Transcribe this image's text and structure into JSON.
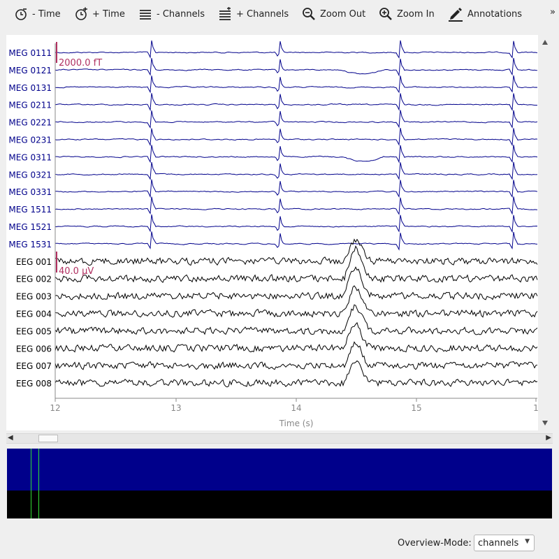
{
  "toolbar": {
    "buttons": [
      {
        "label": "- Time",
        "icon": "clock-minus-icon"
      },
      {
        "label": "+ Time",
        "icon": "clock-plus-icon"
      },
      {
        "label": "- Channels",
        "icon": "channels-minus-icon"
      },
      {
        "label": "+ Channels",
        "icon": "channels-plus-icon"
      },
      {
        "label": "Zoom Out",
        "icon": "zoom-out-icon"
      },
      {
        "label": "Zoom In",
        "icon": "zoom-in-icon"
      },
      {
        "label": "Annotations",
        "icon": "pen-icon"
      }
    ],
    "overflow": "»"
  },
  "plot": {
    "channels": [
      {
        "name": "MEG 0111",
        "type": "meg"
      },
      {
        "name": "MEG 0121",
        "type": "meg"
      },
      {
        "name": "MEG 0131",
        "type": "meg"
      },
      {
        "name": "MEG 0211",
        "type": "meg"
      },
      {
        "name": "MEG 0221",
        "type": "meg"
      },
      {
        "name": "MEG 0231",
        "type": "meg"
      },
      {
        "name": "MEG 0311",
        "type": "meg"
      },
      {
        "name": "MEG 0321",
        "type": "meg"
      },
      {
        "name": "MEG 0331",
        "type": "meg"
      },
      {
        "name": "MEG 1511",
        "type": "meg"
      },
      {
        "name": "MEG 1521",
        "type": "meg"
      },
      {
        "name": "MEG 1531",
        "type": "meg"
      },
      {
        "name": "EEG 001",
        "type": "eeg"
      },
      {
        "name": "EEG 002",
        "type": "eeg"
      },
      {
        "name": "EEG 003",
        "type": "eeg"
      },
      {
        "name": "EEG 004",
        "type": "eeg"
      },
      {
        "name": "EEG 005",
        "type": "eeg"
      },
      {
        "name": "EEG 006",
        "type": "eeg"
      },
      {
        "name": "EEG 007",
        "type": "eeg"
      },
      {
        "name": "EEG 008",
        "type": "eeg"
      }
    ],
    "x_ticks": [
      "12",
      "13",
      "14",
      "15",
      "1"
    ],
    "x_label": "Time (s)",
    "scale_bars": [
      {
        "label": "2000.0 fT",
        "channel_type": "meg"
      },
      {
        "label": "40.0 µV",
        "channel_type": "eeg"
      }
    ],
    "colors": {
      "meg": "#00008b",
      "eeg": "#000000",
      "scalebar": "#b03060",
      "axis": "#888888"
    }
  },
  "overview": {
    "mode_label": "Overview-Mode:",
    "mode_value": "channels"
  }
}
